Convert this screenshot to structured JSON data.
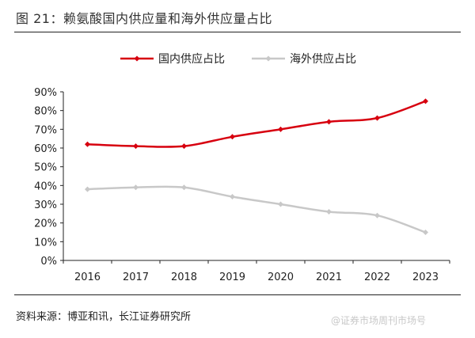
{
  "title": "图  21：赖氨酸国内供应量和海外供应量占比",
  "source": "资料来源：博亚和讯，长江证券研究所",
  "watermark": "@证券市场周刊市场号",
  "chart_data": {
    "type": "line",
    "title": "图 21：赖氨酸国内供应量和海外供应量占比",
    "categories": [
      "2016",
      "2017",
      "2018",
      "2019",
      "2020",
      "2021",
      "2022",
      "2023"
    ],
    "ylim": [
      0,
      90
    ],
    "yticks": [
      0,
      10,
      20,
      30,
      40,
      50,
      60,
      70,
      80,
      90
    ],
    "ytick_labels": [
      "0%",
      "10%",
      "20%",
      "30%",
      "40%",
      "50%",
      "60%",
      "70%",
      "80%",
      "90%"
    ],
    "legend_position": "top-center",
    "grid": false,
    "series": [
      {
        "name": "国内供应占比",
        "color": "#d7000f",
        "values": [
          62,
          61,
          61,
          66,
          70,
          74,
          76,
          85
        ]
      },
      {
        "name": "海外供应占比",
        "color": "#c8c8c8",
        "values": [
          38,
          39,
          39,
          34,
          30,
          26,
          24,
          15
        ]
      }
    ]
  }
}
